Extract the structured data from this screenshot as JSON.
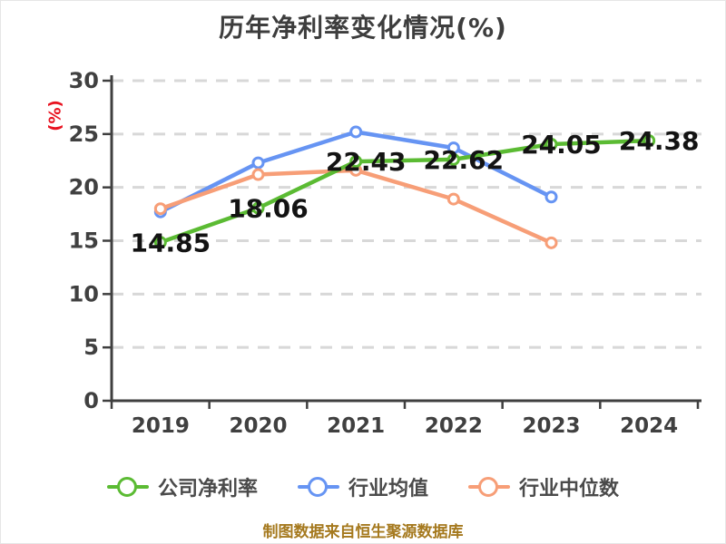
{
  "title": "历年净利率变化情况(%)",
  "source_note": "制图数据来自恒生聚源数据库",
  "palette": {
    "background": "#ffffff",
    "title_text": "#3d3d3d",
    "axis": "#3f3f3f",
    "grid": "#d8d8d8",
    "tick_text": "#404040",
    "y_unit_text": "#e8121f",
    "data_label_text": "#131313",
    "legend_text": "#4a4a4a",
    "source_text": "#a5791e",
    "marker_fill": "#ffffff"
  },
  "chart_data": {
    "type": "line",
    "title": "历年净利率变化情况(%)",
    "ylabel": "(%)",
    "categories": [
      "2019",
      "2020",
      "2021",
      "2022",
      "2023",
      "2024"
    ],
    "ylim": [
      0,
      30
    ],
    "ytick_step": 5,
    "grid": "horizontal-dashed",
    "legend_position": "bottom",
    "series": [
      {
        "name": "公司净利率",
        "color": "#5bbb33",
        "z": 3,
        "show_labels": true,
        "values": [
          14.85,
          18.06,
          22.43,
          22.62,
          24.05,
          24.38
        ]
      },
      {
        "name": "行业均值",
        "color": "#6694f3",
        "z": 1,
        "show_labels": false,
        "values": [
          17.7,
          22.3,
          25.2,
          23.7,
          19.1,
          null
        ]
      },
      {
        "name": "行业中位数",
        "color": "#f79e77",
        "z": 2,
        "show_labels": false,
        "values": [
          18.0,
          21.2,
          21.6,
          18.9,
          14.8,
          null
        ]
      }
    ]
  }
}
